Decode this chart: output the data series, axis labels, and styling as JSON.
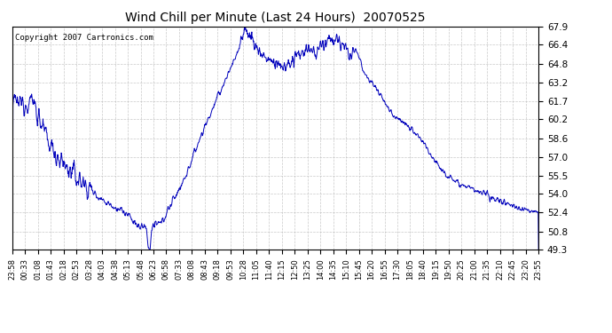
{
  "title": "Wind Chill per Minute (Last 24 Hours)  20070525",
  "copyright_text": "Copyright 2007 Cartronics.com",
  "line_color": "#0000BB",
  "background_color": "#ffffff",
  "grid_color": "#bbbbbb",
  "yticks": [
    49.3,
    50.8,
    52.4,
    54.0,
    55.5,
    57.0,
    58.6,
    60.2,
    61.7,
    63.2,
    64.8,
    66.4,
    67.9
  ],
  "ylim": [
    49.3,
    67.9
  ],
  "xtick_labels": [
    "23:58",
    "00:33",
    "01:08",
    "01:43",
    "02:18",
    "02:53",
    "03:28",
    "04:03",
    "04:38",
    "05:13",
    "05:48",
    "06:23",
    "06:58",
    "07:33",
    "08:08",
    "08:43",
    "09:18",
    "09:53",
    "10:28",
    "11:05",
    "11:40",
    "12:15",
    "12:50",
    "13:25",
    "14:00",
    "14:35",
    "15:10",
    "15:45",
    "16:20",
    "16:55",
    "17:30",
    "18:05",
    "18:40",
    "19:15",
    "19:50",
    "20:25",
    "21:00",
    "21:35",
    "22:10",
    "22:45",
    "23:20",
    "23:55"
  ],
  "figsize": [
    6.9,
    3.75
  ],
  "dpi": 100
}
